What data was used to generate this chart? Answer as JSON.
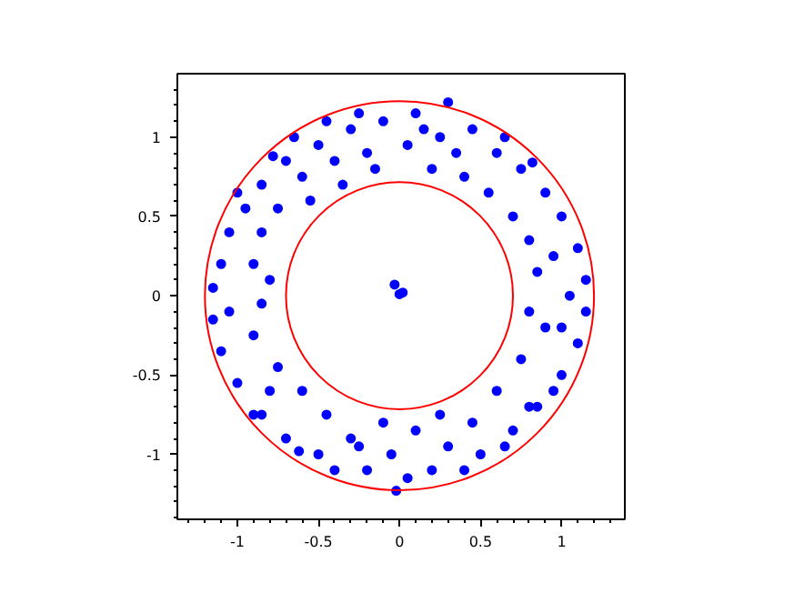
{
  "chart_data": {
    "type": "scatter",
    "marker": "circle",
    "grid": false,
    "xlim": [
      -1.37,
      1.39
    ],
    "ylim": [
      -1.41,
      1.4
    ],
    "xticks": [
      {
        "value": -1.3,
        "label": null
      },
      {
        "value": -1.2,
        "label": null
      },
      {
        "value": -1.1,
        "label": null
      },
      -1,
      {
        "value": -0.9,
        "label": null
      },
      {
        "value": -0.8,
        "label": null
      },
      {
        "value": -0.7,
        "label": null
      },
      {
        "value": -0.6,
        "label": null
      },
      -0.5,
      {
        "value": -0.4,
        "label": null
      },
      {
        "value": -0.3,
        "label": null
      },
      {
        "value": -0.2,
        "label": null
      },
      {
        "value": -0.1,
        "label": null
      },
      0,
      {
        "value": 0.1,
        "label": null
      },
      {
        "value": 0.2,
        "label": null
      },
      {
        "value": 0.3,
        "label": null
      },
      {
        "value": 0.4,
        "label": null
      },
      0.5,
      {
        "value": 0.6,
        "label": null
      },
      {
        "value": 0.7,
        "label": null
      },
      {
        "value": 0.8,
        "label": null
      },
      {
        "value": 0.9,
        "label": null
      },
      1,
      {
        "value": 1.1,
        "label": null
      },
      {
        "value": 1.2,
        "label": null
      },
      {
        "value": 1.3,
        "label": null
      }
    ],
    "yticks": [
      {
        "value": -1.4,
        "label": null
      },
      {
        "value": -1.3,
        "label": null
      },
      {
        "value": -1.2,
        "label": null
      },
      {
        "value": -1.1,
        "label": null
      },
      -1,
      {
        "value": -0.9,
        "label": null
      },
      {
        "value": -0.8,
        "label": null
      },
      {
        "value": -0.7,
        "label": null
      },
      {
        "value": -0.6,
        "label": null
      },
      -0.5,
      {
        "value": -0.4,
        "label": null
      },
      {
        "value": -0.3,
        "label": null
      },
      {
        "value": -0.2,
        "label": null
      },
      {
        "value": -0.1,
        "label": null
      },
      0,
      {
        "value": 0.1,
        "label": null
      },
      {
        "value": 0.2,
        "label": null
      },
      {
        "value": 0.3,
        "label": null
      },
      {
        "value": 0.4,
        "label": null
      },
      0.5,
      {
        "value": 0.6,
        "label": null
      },
      {
        "value": 0.7,
        "label": null
      },
      {
        "value": 0.8,
        "label": null
      },
      {
        "value": 0.9,
        "label": null
      },
      1,
      {
        "value": 1.1,
        "label": null
      },
      {
        "value": 1.2,
        "label": null
      },
      {
        "value": 1.3,
        "label": null
      }
    ],
    "series": [
      {
        "color": "#0000ff",
        "x": [
          -0.1,
          -0.3,
          -0.5,
          -0.7,
          -0.85,
          -0.95,
          -1.05,
          -1.1,
          -0.2,
          -0.4,
          -0.6,
          -0.75,
          -0.85,
          -0.9,
          -0.45,
          -0.65,
          -0.78,
          -1.0,
          -0.15,
          -0.35,
          -0.55,
          -0.8,
          -1.15,
          -0.25,
          0.1,
          0.3,
          0.05,
          0.25,
          0.45,
          0.6,
          0.75,
          0.9,
          1.0,
          1.1,
          1.15,
          0.2,
          0.4,
          0.55,
          0.7,
          0.8,
          0.85,
          0.95,
          0.65,
          0.82,
          0.35,
          0.15,
          1.05,
          -0.1,
          -0.3,
          -0.5,
          -0.7,
          -0.85,
          -1.0,
          -1.1,
          -1.15,
          -0.2,
          -0.4,
          -0.6,
          -0.75,
          -0.9,
          -0.8,
          -0.9,
          -0.45,
          -0.25,
          -1.05,
          -0.62,
          -0.02,
          -0.05,
          -0.85,
          0.1,
          0.3,
          0.5,
          0.7,
          0.85,
          1.0,
          1.1,
          1.15,
          0.2,
          0.4,
          0.6,
          0.75,
          0.9,
          0.8,
          0.95,
          0.45,
          0.25,
          1.0,
          0.65,
          0.05,
          0.8,
          -0.03,
          0,
          0.02
        ],
        "values": [
          1.1,
          1.05,
          0.95,
          0.85,
          0.7,
          0.55,
          0.4,
          0.2,
          0.9,
          0.85,
          0.75,
          0.55,
          0.4,
          0.2,
          1.1,
          1.0,
          0.88,
          0.65,
          0.8,
          0.7,
          0.6,
          0.1,
          0.05,
          1.15,
          1.15,
          1.22,
          0.95,
          1.0,
          1.05,
          0.9,
          0.8,
          0.65,
          0.5,
          0.3,
          0.1,
          0.8,
          0.75,
          0.65,
          0.5,
          0.35,
          0.15,
          0.25,
          1.0,
          0.84,
          0.9,
          1.05,
          0.0,
          -0.8,
          -0.9,
          -1.0,
          -0.9,
          -0.75,
          -0.55,
          -0.35,
          -0.15,
          -1.1,
          -1.1,
          -0.6,
          -0.45,
          -0.25,
          -0.6,
          -0.75,
          -0.75,
          -0.95,
          -0.1,
          -0.98,
          -1.23,
          -1.0,
          -0.05,
          -0.85,
          -0.95,
          -1.0,
          -0.85,
          -0.7,
          -0.5,
          -0.3,
          -0.1,
          -1.1,
          -1.1,
          -0.6,
          -0.4,
          -0.2,
          -0.7,
          -0.6,
          -0.8,
          -0.75,
          -0.2,
          -0.95,
          -1.15,
          -0.1,
          0.07,
          0.01,
          0.02
        ]
      }
    ]
  }
}
